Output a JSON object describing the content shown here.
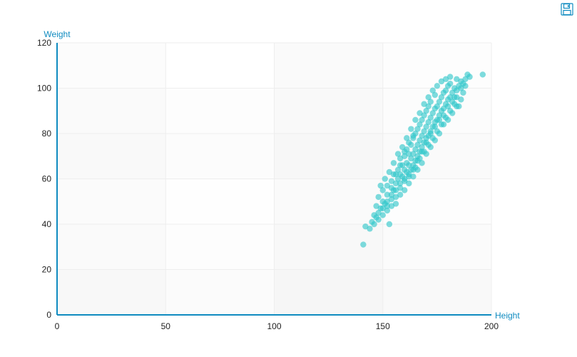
{
  "toolbox": {
    "save_icon": "save-as-image-icon"
  },
  "colors": {
    "axis": "#0f8bc0",
    "point": "#2ec7c9",
    "grid_line": "#eeeeee",
    "band_a": "#f5f5f5",
    "band_b": "#fafafa",
    "band_c": "#ffffff"
  },
  "chart_data": {
    "type": "scatter",
    "xlabel": "Height",
    "ylabel": "Weight",
    "xlim": [
      0,
      200
    ],
    "ylim": [
      0,
      120
    ],
    "x_ticks": [
      "0",
      "50",
      "100",
      "150",
      "200"
    ],
    "y_ticks": [
      "0",
      "20",
      "40",
      "60",
      "80",
      "100",
      "120"
    ],
    "grid": true,
    "series": [
      {
        "points": [
          [
            141,
            31
          ],
          [
            142,
            39
          ],
          [
            144,
            38
          ],
          [
            145,
            41
          ],
          [
            146,
            44
          ],
          [
            147,
            43
          ],
          [
            148,
            45
          ],
          [
            148,
            52
          ],
          [
            149,
            47
          ],
          [
            150,
            50
          ],
          [
            150,
            55
          ],
          [
            151,
            49
          ],
          [
            152,
            53
          ],
          [
            152,
            57
          ],
          [
            153,
            40
          ],
          [
            154,
            51
          ],
          [
            154,
            59
          ],
          [
            155,
            55
          ],
          [
            155,
            62
          ],
          [
            156,
            52
          ],
          [
            156,
            58
          ],
          [
            157,
            60
          ],
          [
            157,
            64
          ],
          [
            158,
            56
          ],
          [
            158,
            62
          ],
          [
            158,
            69
          ],
          [
            159,
            61
          ],
          [
            159,
            66
          ],
          [
            160,
            59
          ],
          [
            160,
            64
          ],
          [
            160,
            70
          ],
          [
            161,
            63
          ],
          [
            161,
            67
          ],
          [
            161,
            73
          ],
          [
            162,
            61
          ],
          [
            162,
            66
          ],
          [
            162,
            71
          ],
          [
            163,
            64
          ],
          [
            163,
            69
          ],
          [
            163,
            75
          ],
          [
            164,
            66
          ],
          [
            164,
            71
          ],
          [
            164,
            78
          ],
          [
            165,
            68
          ],
          [
            165,
            73
          ],
          [
            165,
            80
          ],
          [
            166,
            70
          ],
          [
            166,
            75
          ],
          [
            166,
            82
          ],
          [
            167,
            72
          ],
          [
            167,
            77
          ],
          [
            167,
            84
          ],
          [
            168,
            74
          ],
          [
            168,
            79
          ],
          [
            168,
            86
          ],
          [
            169,
            76
          ],
          [
            169,
            81
          ],
          [
            169,
            88
          ],
          [
            170,
            78
          ],
          [
            170,
            83
          ],
          [
            170,
            90
          ],
          [
            171,
            79
          ],
          [
            171,
            85
          ],
          [
            171,
            92
          ],
          [
            172,
            81
          ],
          [
            172,
            87
          ],
          [
            172,
            94
          ],
          [
            173,
            83
          ],
          [
            173,
            89
          ],
          [
            174,
            85
          ],
          [
            174,
            91
          ],
          [
            174,
            97
          ],
          [
            175,
            86
          ],
          [
            175,
            92
          ],
          [
            176,
            88
          ],
          [
            176,
            94
          ],
          [
            177,
            90
          ],
          [
            177,
            96
          ],
          [
            178,
            91
          ],
          [
            178,
            98
          ],
          [
            179,
            93
          ],
          [
            179,
            99
          ],
          [
            180,
            95
          ],
          [
            180,
            101
          ],
          [
            181,
            96
          ],
          [
            181,
            102
          ],
          [
            182,
            98
          ],
          [
            183,
            100
          ],
          [
            184,
            99
          ],
          [
            184,
            104
          ],
          [
            185,
            101
          ],
          [
            186,
            103
          ],
          [
            187,
            102
          ],
          [
            188,
            104
          ],
          [
            189,
            106
          ],
          [
            190,
            105
          ],
          [
            196,
            106
          ],
          [
            152,
            46
          ],
          [
            154,
            48
          ],
          [
            156,
            49
          ],
          [
            158,
            53
          ],
          [
            160,
            55
          ],
          [
            162,
            58
          ],
          [
            164,
            61
          ],
          [
            166,
            64
          ],
          [
            168,
            67
          ],
          [
            170,
            71
          ],
          [
            172,
            74
          ],
          [
            174,
            77
          ],
          [
            176,
            80
          ],
          [
            178,
            84
          ],
          [
            180,
            86
          ],
          [
            182,
            89
          ],
          [
            184,
            92
          ],
          [
            186,
            95
          ],
          [
            150,
            44
          ],
          [
            147,
            48
          ],
          [
            149,
            57
          ],
          [
            151,
            60
          ],
          [
            153,
            63
          ],
          [
            155,
            67
          ],
          [
            157,
            71
          ],
          [
            159,
            74
          ],
          [
            161,
            78
          ],
          [
            163,
            82
          ],
          [
            165,
            86
          ],
          [
            167,
            89
          ],
          [
            169,
            93
          ],
          [
            171,
            96
          ],
          [
            173,
            99
          ],
          [
            175,
            101
          ],
          [
            177,
            103
          ],
          [
            179,
            104
          ],
          [
            181,
            105
          ],
          [
            183,
            96
          ],
          [
            185,
            92
          ],
          [
            187,
            98
          ],
          [
            165,
            65
          ],
          [
            167,
            69
          ],
          [
            169,
            72
          ],
          [
            171,
            75
          ],
          [
            173,
            78
          ],
          [
            175,
            81
          ],
          [
            177,
            84
          ],
          [
            179,
            87
          ],
          [
            181,
            90
          ],
          [
            183,
            93
          ],
          [
            162,
            76
          ],
          [
            164,
            79
          ],
          [
            160,
            72
          ],
          [
            158,
            66
          ],
          [
            156,
            62
          ],
          [
            154,
            56
          ],
          [
            152,
            50
          ],
          [
            176,
            86
          ],
          [
            178,
            88
          ],
          [
            174,
            83
          ],
          [
            172,
            80
          ],
          [
            170,
            76
          ],
          [
            168,
            72
          ],
          [
            166,
            68
          ],
          [
            164,
            64
          ],
          [
            162,
            62
          ],
          [
            160,
            60
          ],
          [
            158,
            58
          ],
          [
            156,
            55
          ],
          [
            154,
            53
          ],
          [
            152,
            48
          ],
          [
            150,
            47
          ],
          [
            148,
            42
          ],
          [
            146,
            40
          ],
          [
            180,
            92
          ],
          [
            182,
            94
          ],
          [
            184,
            96
          ],
          [
            186,
            100
          ],
          [
            188,
            101
          ]
        ]
      }
    ]
  }
}
